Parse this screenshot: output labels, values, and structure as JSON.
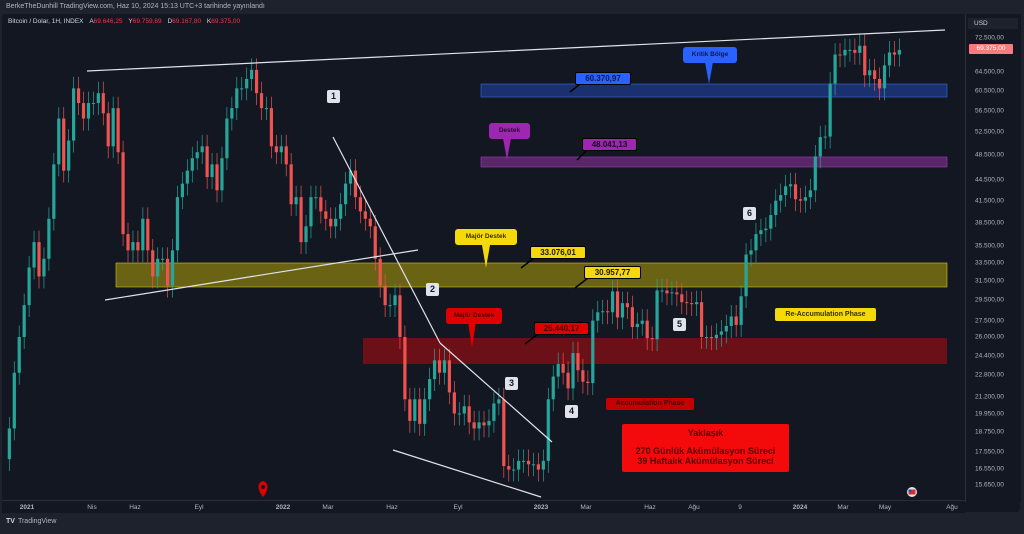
{
  "header": {
    "published": "BerkeTheDunhill TradingView.com, Haz 10, 2024 15:13 UTC+3 tarihinde yayınlandı",
    "symbol": "Bitcoin / Dolar, 1H, INDEX",
    "ohlc": [
      {
        "label": "A",
        "value": "69.646,25"
      },
      {
        "label": "Y",
        "value": "69.759,69"
      },
      {
        "label": "D",
        "value": "69.167,80"
      },
      {
        "label": "K",
        "value": "69.375,00"
      }
    ]
  },
  "footer": {
    "brand": "TradingView",
    "logo": "TV"
  },
  "colors": {
    "background": "#131722",
    "up": "#26a69a",
    "down": "#ef5350",
    "blue_zone": "#1e3a8a",
    "purple_zone": "#6b2a7a",
    "yellow_zone": "#8a7d10",
    "red_zone": "#7a0f14"
  },
  "chart_data": {
    "type": "candlestick",
    "currency": "USD",
    "y_scale": "log",
    "ylim": [
      15650,
      72500
    ],
    "y_ticks": [
      "72.500,00",
      "64.500,00",
      "60.500,00",
      "56.500,00",
      "52.500,00",
      "48.500,00",
      "44.500,00",
      "41.500,00",
      "38.500,00",
      "35.500,00",
      "33.500,00",
      "31.500,00",
      "29.500,00",
      "27.500,00",
      "26.000,00",
      "24.400,00",
      "22.800,00",
      "21.200,00",
      "19.950,00",
      "18.750,00",
      "17.550,00",
      "16.550,00",
      "15.650,00"
    ],
    "last_price": "69.375,00",
    "x_ticks": [
      "2021",
      "Nis",
      "Haz",
      "Eyl",
      "2022",
      "Mar",
      "Haz",
      "Eyl",
      "2023",
      "Mar",
      "Haz",
      "Ağu",
      "9",
      "2024",
      "Mar",
      "May",
      "Ağu"
    ],
    "start_week": "2020-12-07",
    "weekly_close_thousands": [
      19,
      23,
      26,
      29,
      33,
      36,
      32,
      34,
      39,
      47,
      55,
      46,
      51,
      61,
      58,
      55,
      58,
      58,
      60,
      56,
      50,
      57,
      49,
      37,
      35,
      36,
      35,
      39,
      35,
      32,
      34,
      34,
      31,
      35,
      42,
      44,
      46,
      48,
      49,
      50,
      45,
      47,
      43,
      48,
      55,
      57,
      61,
      61,
      63,
      65,
      60,
      57,
      57,
      50,
      49,
      50,
      47,
      41,
      42,
      36,
      38,
      42,
      42,
      40,
      39,
      38,
      39,
      41,
      44,
      46,
      42,
      40,
      39,
      38,
      34,
      31,
      29,
      29,
      30,
      26,
      21,
      19.5,
      21,
      19.3,
      21,
      22.5,
      24,
      23,
      24,
      21.5,
      20,
      20,
      20.5,
      19.4,
      19,
      19.4,
      19.2,
      19.5,
      20.7,
      21,
      16.7,
      16.5,
      16.5,
      17,
      17,
      16.8,
      16.8,
      16.5,
      17,
      21,
      22.7,
      23.7,
      23,
      21.8,
      24.6,
      23.2,
      22.3,
      22.2,
      27.5,
      28.3,
      28.4,
      28.3,
      30.4,
      27.8,
      29.2,
      28.8,
      26.9,
      27.2,
      27.5,
      25.9,
      25.8,
      30.5,
      30.5,
      30.2,
      30.3,
      30.1,
      29.3,
      29.2,
      29.1,
      29.3,
      26,
      26,
      25.9,
      26.2,
      26.5,
      27,
      27.9,
      27.1,
      29.9,
      34.5,
      35,
      37,
      37.5,
      37.7,
      39.5,
      41.5,
      42.3,
      43.6,
      43.9,
      41.7,
      41.5,
      42,
      43,
      48.3,
      51.6,
      51.7,
      62,
      68.5,
      68.3,
      69.6,
      69.6,
      68.9,
      70.6,
      63.8,
      64.9,
      63,
      61,
      66,
      69,
      68.5,
      69.6
    ],
    "zones": [
      {
        "name": "Kritik Bölge",
        "level": "60.370,97"
      },
      {
        "name": "Destek",
        "level": "48.041,13"
      },
      {
        "name": "Majör Destek",
        "levels": [
          "33.076,01",
          "30.957,77"
        ]
      },
      {
        "name": "Majör Destek",
        "level": "25.440,17"
      }
    ],
    "wave_labels": [
      "1",
      "2",
      "3",
      "4",
      "5",
      "6"
    ],
    "phases": [
      "Accumulation Phase",
      "Re-Accumulation Phase"
    ],
    "note": {
      "title": "Yaklaşık",
      "lines": [
        "270 Günlük Akümülasyon Süreci",
        "39 Haftalık Akümülasyon Süreci"
      ]
    }
  }
}
